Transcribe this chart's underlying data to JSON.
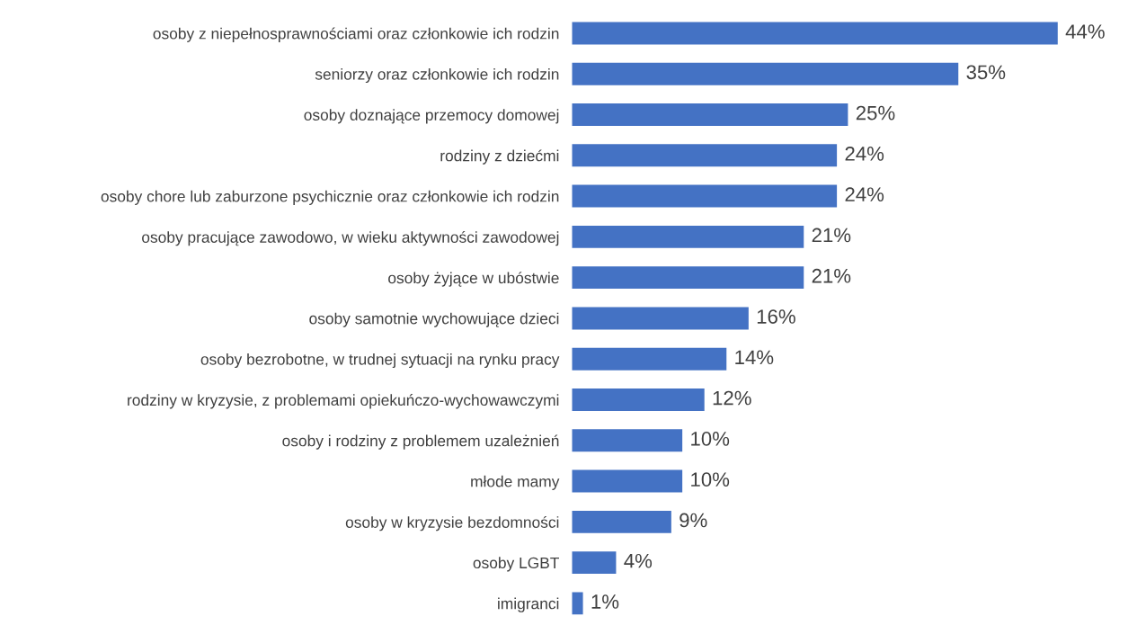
{
  "chart_data": {
    "type": "bar",
    "orientation": "horizontal",
    "color": "#4472c4",
    "categories": [
      "osoby z niepełnosprawnościami oraz członkowie ich rodzin",
      "seniorzy oraz członkowie ich rodzin",
      "osoby doznające przemocy domowej",
      "rodziny z dziećmi",
      "osoby chore lub zaburzone psychicznie oraz członkowie ich rodzin",
      "osoby pracujące zawodowo, w wieku aktywności zawodowej",
      "osoby żyjące w ubóstwie",
      "osoby samotnie wychowujące dzieci",
      "osoby bezrobotne, w trudnej sytuacji na rynku pracy",
      "rodziny w kryzysie, z problemami opiekuńczo-wychowawczymi",
      "osoby i rodziny z problemem uzależnień",
      "młode mamy",
      "osoby w kryzysie bezdomności",
      "osoby LGBT",
      "imigranci"
    ],
    "values": [
      44,
      35,
      25,
      24,
      24,
      21,
      21,
      16,
      14,
      12,
      10,
      10,
      9,
      4,
      1
    ],
    "value_labels": [
      "44%",
      "35%",
      "25%",
      "24%",
      "24%",
      "21%",
      "21%",
      "16%",
      "14%",
      "12%",
      "10%",
      "10%",
      "9%",
      "4%",
      "1%"
    ],
    "grid": false,
    "legend": false
  }
}
